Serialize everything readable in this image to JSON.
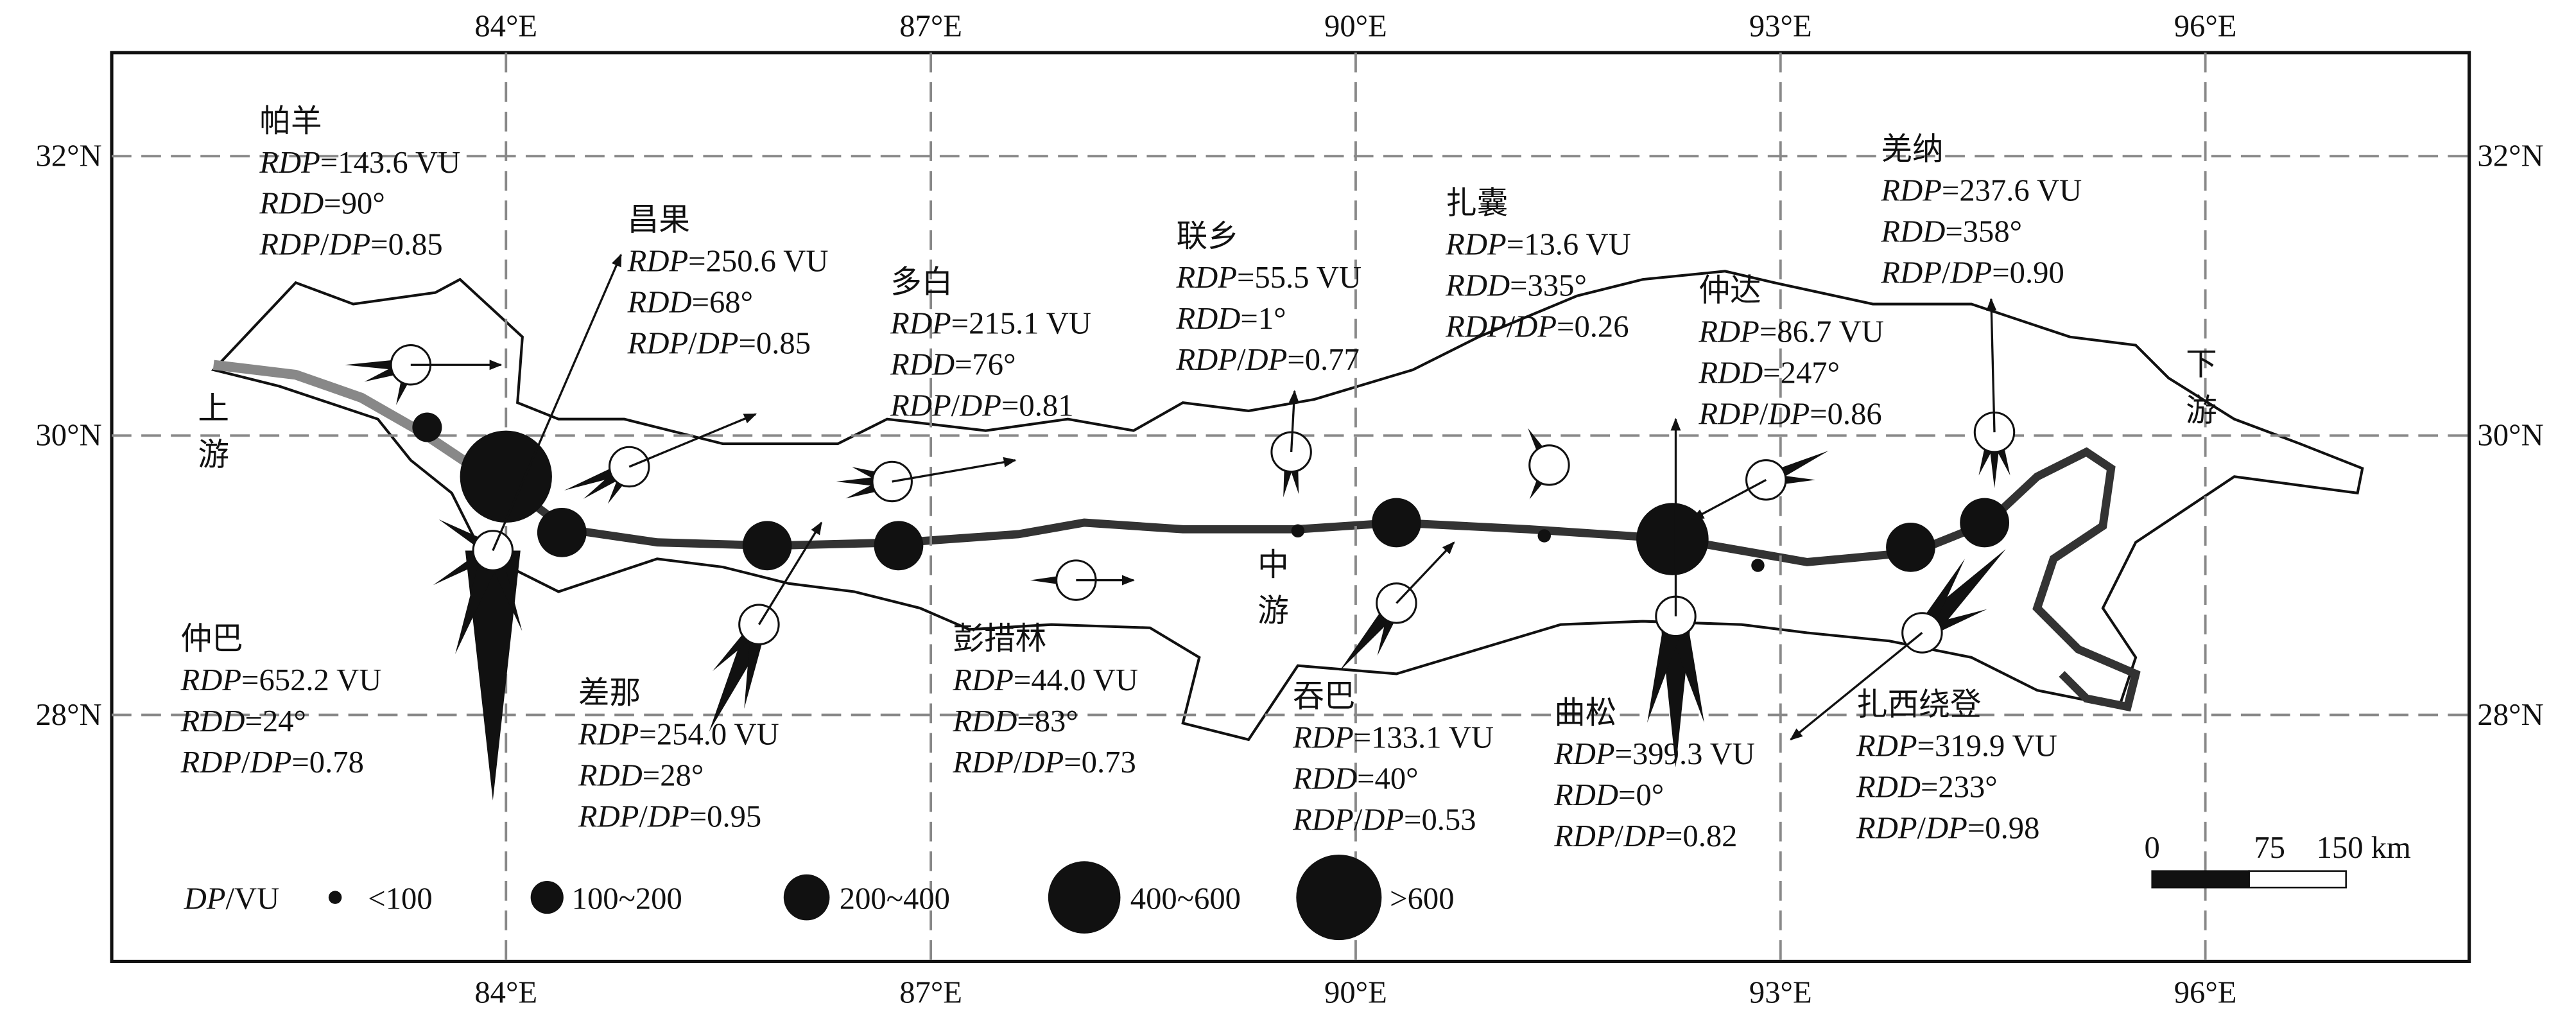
{
  "map": {
    "lon_ticks": [
      {
        "value": 84,
        "label": "84°E"
      },
      {
        "value": 87,
        "label": "87°E"
      },
      {
        "value": 90,
        "label": "90°E"
      },
      {
        "value": 93,
        "label": "93°E"
      },
      {
        "value": 96,
        "label": "96°E"
      }
    ],
    "lat_ticks": [
      {
        "value": 32,
        "label": "32°N"
      },
      {
        "value": 30,
        "label": "30°N"
      },
      {
        "value": 28,
        "label": "28°N"
      }
    ],
    "stations": [
      {
        "name": "帕羊",
        "rdp": "RDP=143.6 VU",
        "rdd": "RDD=90°",
        "ratio": "RDP/DP=0.85"
      },
      {
        "name": "昌果",
        "rdp": "RDP=250.6 VU",
        "rdd": "RDD=68°",
        "ratio": "RDP/DP=0.85"
      },
      {
        "name": "多白",
        "rdp": "RDP=215.1 VU",
        "rdd": "RDD=76°",
        "ratio": "RDP/DP=0.81"
      },
      {
        "name": "联乡",
        "rdp": "RDP=55.5 VU",
        "rdd": "RDD=1°",
        "ratio": "RDP/DP=0.77"
      },
      {
        "name": "扎囊",
        "rdp": "RDP=13.6 VU",
        "rdd": "RDD=335°",
        "ratio": "RDP/DP=0.26"
      },
      {
        "name": "仲达",
        "rdp": "RDP=86.7 VU",
        "rdd": "RDD=247°",
        "ratio": "RDP/DP=0.86"
      },
      {
        "name": "羌纳",
        "rdp": "RDP=237.6 VU",
        "rdd": "RDD=358°",
        "ratio": "RDP/DP=0.90"
      },
      {
        "name": "仲巴",
        "rdp": "RDP=652.2 VU",
        "rdd": "RDD=24°",
        "ratio": "RDP/DP=0.78"
      },
      {
        "name": "差那",
        "rdp": "RDP=254.0 VU",
        "rdd": "RDD=28°",
        "ratio": "RDP/DP=0.95"
      },
      {
        "name": "彭措林",
        "rdp": "RDP=44.0 VU",
        "rdd": "RDD=83°",
        "ratio": "RDP/DP=0.73"
      },
      {
        "name": "吞巴",
        "rdp": "RDP=133.1 VU",
        "rdd": "RDD=40°",
        "ratio": "RDP/DP=0.53"
      },
      {
        "name": "曲松",
        "rdp": "RDP=399.3 VU",
        "rdd": "RDD=0°",
        "ratio": "RDP/DP=0.82"
      },
      {
        "name": "扎西绕登",
        "rdp": "RDP=319.9 VU",
        "rdd": "RDD=233°",
        "ratio": "RDP/DP=0.98"
      }
    ],
    "regions": [
      [
        "上",
        "游"
      ],
      [
        "中",
        "游"
      ],
      [
        "下",
        "游"
      ]
    ],
    "legend": {
      "title": "DP/VU",
      "classes": [
        "<100",
        "100~200",
        "200~400",
        "400~600",
        ">600"
      ]
    },
    "scale_bar": [
      "0",
      "75",
      "150 km"
    ]
  }
}
